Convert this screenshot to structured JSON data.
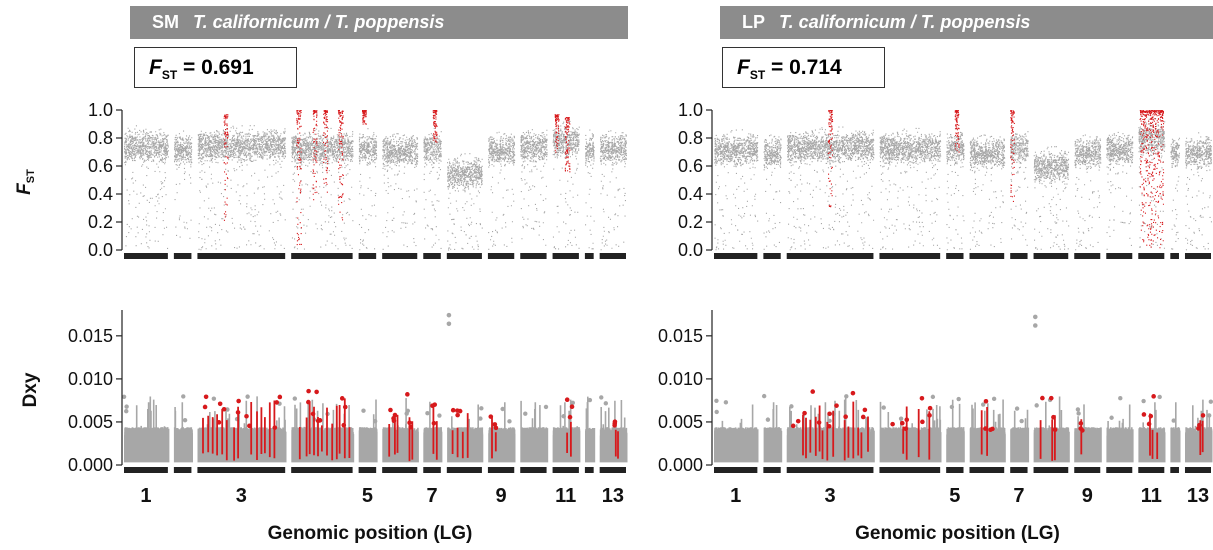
{
  "panels": [
    {
      "id": "SM",
      "site": "SM",
      "species": "T. californicum / T. poppensis",
      "fst_label": "F",
      "fst_sub": "ST",
      "fst_value_text": " = 0.691",
      "fst_genome_wide": 0.691
    },
    {
      "id": "LP",
      "site": "LP",
      "species": "T. californicum / T. poppensis",
      "fst_label": "F",
      "fst_sub": "ST",
      "fst_value_text": " = 0.714",
      "fst_genome_wide": 0.714
    }
  ],
  "colors": {
    "background_snp": "#a7a7a7",
    "outlier": "#d7191c",
    "chrom_bar": "#222222",
    "header_bar": "#8c8c8c"
  },
  "chart_data": [
    {
      "type": "scatter",
      "panel": "SM",
      "ylabel": "FST",
      "ylim": [
        0.0,
        1.0
      ],
      "yticks": [
        "0.0",
        "0.2",
        "0.4",
        "0.6",
        "0.8",
        "1.0"
      ],
      "xlabel": "",
      "linkage_groups": 13,
      "lg_relative_lengths": [
        5,
        2,
        10,
        7,
        2,
        4,
        2,
        4,
        3,
        3,
        3,
        1,
        3
      ],
      "lg_typical_fst": [
        0.74,
        0.72,
        0.75,
        0.73,
        0.73,
        0.71,
        0.73,
        0.55,
        0.72,
        0.74,
        0.78,
        0.72,
        0.73
      ],
      "outlier_series": [
        {
          "lg": 3,
          "pos": 0.32,
          "width": 0.04,
          "fst_range": [
            0.2,
            0.97
          ]
        },
        {
          "lg": 4,
          "pos": 0.12,
          "width": 0.08,
          "fst_range": [
            0.0,
            1.0
          ]
        },
        {
          "lg": 4,
          "pos": 0.38,
          "width": 0.06,
          "fst_range": [
            0.35,
            1.0
          ]
        },
        {
          "lg": 4,
          "pos": 0.55,
          "width": 0.06,
          "fst_range": [
            0.4,
            1.0
          ]
        },
        {
          "lg": 4,
          "pos": 0.8,
          "width": 0.08,
          "fst_range": [
            0.2,
            1.0
          ]
        },
        {
          "lg": 5,
          "pos": 0.3,
          "width": 0.15,
          "fst_range": [
            0.9,
            1.0
          ]
        },
        {
          "lg": 7,
          "pos": 0.65,
          "width": 0.08,
          "fst_range": [
            0.75,
            1.0
          ]
        },
        {
          "lg": 11,
          "pos": 0.15,
          "width": 0.14,
          "fst_range": [
            0.7,
            0.97
          ]
        },
        {
          "lg": 11,
          "pos": 0.55,
          "width": 0.18,
          "fst_range": [
            0.55,
            0.95
          ]
        }
      ]
    },
    {
      "type": "scatter",
      "panel": "SM",
      "ylabel": "Dxy",
      "ylim": [
        0.0,
        0.018
      ],
      "yticks": [
        "0.000",
        "0.005",
        "0.010",
        "0.015"
      ],
      "xlabel": "Genomic position (LG)",
      "xticks": [
        "1",
        "3",
        "5",
        "7",
        "9",
        "11",
        "13"
      ],
      "xtick_lgs": [
        1,
        3,
        5,
        7,
        9,
        11,
        13
      ],
      "lg_baseline_dxy": 0.004,
      "high_points": [
        {
          "lg": 8,
          "pos": 0.06,
          "dxy": 0.0174
        },
        {
          "lg": 8,
          "pos": 0.06,
          "dxy": 0.0164
        }
      ],
      "outlier_series": [
        {
          "lg": 3,
          "pos": 0.5,
          "width": 0.9,
          "dxy_max": 0.0085
        },
        {
          "lg": 4,
          "pos": 0.55,
          "width": 0.85,
          "dxy_max": 0.0088
        },
        {
          "lg": 6,
          "pos": 0.35,
          "width": 0.35,
          "dxy_max": 0.0065
        },
        {
          "lg": 6,
          "pos": 0.8,
          "width": 0.15,
          "dxy_max": 0.0085
        },
        {
          "lg": 7,
          "pos": 0.7,
          "width": 0.4,
          "dxy_max": 0.0084
        },
        {
          "lg": 8,
          "pos": 0.4,
          "width": 0.55,
          "dxy_max": 0.0072
        },
        {
          "lg": 9,
          "pos": 0.2,
          "width": 0.25,
          "dxy_max": 0.0063
        },
        {
          "lg": 11,
          "pos": 0.55,
          "width": 0.45,
          "dxy_max": 0.0082
        },
        {
          "lg": 13,
          "pos": 0.65,
          "width": 0.18,
          "dxy_max": 0.0058
        }
      ]
    },
    {
      "type": "scatter",
      "panel": "LP",
      "ylabel": "",
      "ylim": [
        0.0,
        1.0
      ],
      "yticks": [
        "0.0",
        "0.2",
        "0.4",
        "0.6",
        "0.8",
        "1.0"
      ],
      "xlabel": "",
      "linkage_groups": 13,
      "lg_relative_lengths": [
        5,
        2,
        10,
        7,
        2,
        4,
        2,
        4,
        3,
        3,
        3,
        1,
        3
      ],
      "lg_typical_fst": [
        0.72,
        0.7,
        0.74,
        0.73,
        0.73,
        0.7,
        0.73,
        0.6,
        0.7,
        0.72,
        0.8,
        0.7,
        0.7
      ],
      "outlier_series": [
        {
          "lg": 3,
          "pos": 0.5,
          "width": 0.05,
          "fst_range": [
            0.3,
            1.0
          ]
        },
        {
          "lg": 5,
          "pos": 0.6,
          "width": 0.15,
          "fst_range": [
            0.7,
            1.0
          ]
        },
        {
          "lg": 7,
          "pos": 0.1,
          "width": 0.1,
          "fst_range": [
            0.35,
            1.0
          ]
        },
        {
          "lg": 11,
          "pos": 0.5,
          "width": 0.9,
          "fst_range": [
            0.0,
            1.0
          ]
        }
      ]
    },
    {
      "type": "scatter",
      "panel": "LP",
      "ylabel": "",
      "ylim": [
        0.0,
        0.018
      ],
      "yticks": [
        "0.000",
        "0.005",
        "0.010",
        "0.015"
      ],
      "xlabel": "Genomic position (LG)",
      "xticks": [
        "1",
        "3",
        "5",
        "7",
        "9",
        "11",
        "13"
      ],
      "xtick_lgs": [
        1,
        3,
        5,
        7,
        9,
        11,
        13
      ],
      "lg_baseline_dxy": 0.004,
      "high_points": [
        {
          "lg": 8,
          "pos": 0.05,
          "dxy": 0.0172
        },
        {
          "lg": 8,
          "pos": 0.05,
          "dxy": 0.0162
        }
      ],
      "outlier_series": [
        {
          "lg": 3,
          "pos": 0.5,
          "width": 0.9,
          "dxy_max": 0.0086
        },
        {
          "lg": 4,
          "pos": 0.3,
          "width": 0.35,
          "dxy_max": 0.0088
        },
        {
          "lg": 4,
          "pos": 0.75,
          "width": 0.25,
          "dxy_max": 0.0082
        },
        {
          "lg": 6,
          "pos": 0.5,
          "width": 0.4,
          "dxy_max": 0.0082
        },
        {
          "lg": 8,
          "pos": 0.45,
          "width": 0.55,
          "dxy_max": 0.0078
        },
        {
          "lg": 9,
          "pos": 0.3,
          "width": 0.2,
          "dxy_max": 0.006
        },
        {
          "lg": 11,
          "pos": 0.5,
          "width": 0.6,
          "dxy_max": 0.0082
        },
        {
          "lg": 13,
          "pos": 0.6,
          "width": 0.2,
          "dxy_max": 0.0058
        }
      ]
    }
  ]
}
